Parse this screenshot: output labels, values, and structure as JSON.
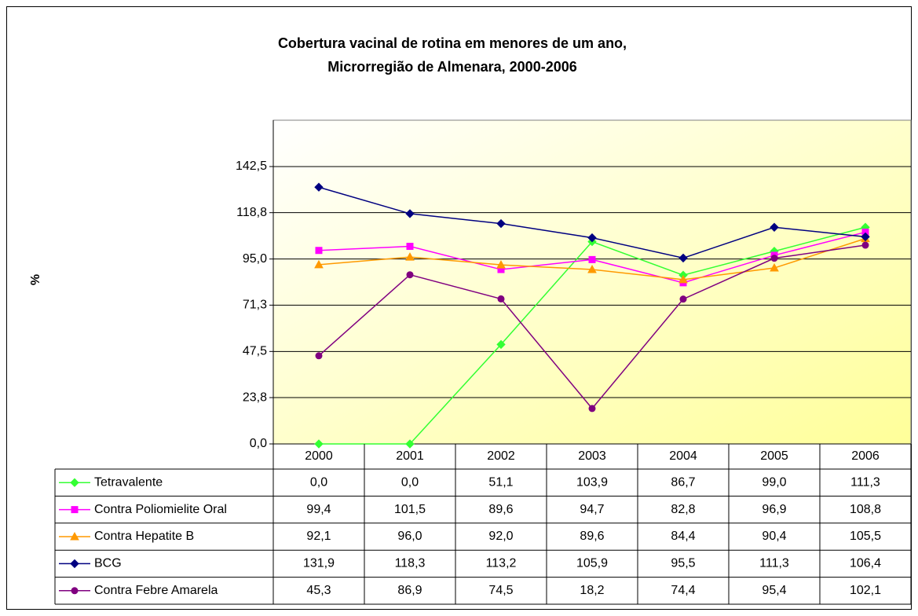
{
  "chart_data": {
    "type": "line",
    "title": [
      "Cobertura vacinal de rotina em menores de um ano,",
      "Microrregião de Almenara, 2000-2006"
    ],
    "y_label": "%",
    "categories": [
      "2000",
      "2001",
      "2002",
      "2003",
      "2004",
      "2005",
      "2006"
    ],
    "ylim": [
      0,
      166.3
    ],
    "yticks": [
      {
        "value": 0,
        "label": "0,0"
      },
      {
        "value": 23.8,
        "label": "23,8"
      },
      {
        "value": 47.5,
        "label": "47,5"
      },
      {
        "value": 71.3,
        "label": "71,3"
      },
      {
        "value": 95,
        "label": "95,0"
      },
      {
        "value": 118.8,
        "label": "118,8"
      },
      {
        "value": 142.5,
        "label": "142,5"
      }
    ],
    "grid": true,
    "series": [
      {
        "name": "Tetravalente",
        "color": "#33ff33",
        "marker": "diamond",
        "values": [
          0,
          0,
          51.1,
          103.9,
          86.7,
          99,
          111.3
        ],
        "value_labels": [
          "0,0",
          "0,0",
          "51,1",
          "103,9",
          "86,7",
          "99,0",
          "111,3"
        ]
      },
      {
        "name": "Contra Poliomielite Oral",
        "color": "#ff00ff",
        "marker": "square",
        "values": [
          99.4,
          101.5,
          89.6,
          94.7,
          82.8,
          96.9,
          108.8
        ],
        "value_labels": [
          "99,4",
          "101,5",
          "89,6",
          "94,7",
          "82,8",
          "96,9",
          "108,8"
        ]
      },
      {
        "name": "Contra Hepatite B",
        "color": "#ff9900",
        "marker": "triangle",
        "values": [
          92.1,
          96,
          92,
          89.6,
          84.4,
          90.4,
          105.5
        ],
        "value_labels": [
          "92,1",
          "96,0",
          "92,0",
          "89,6",
          "84,4",
          "90,4",
          "105,5"
        ]
      },
      {
        "name": "BCG",
        "color": "#000080",
        "marker": "diamond",
        "values": [
          131.9,
          118.3,
          113.2,
          105.9,
          95.5,
          111.3,
          106.4
        ],
        "value_labels": [
          "131,9",
          "118,3",
          "113,2",
          "105,9",
          "95,5",
          "111,3",
          "106,4"
        ]
      },
      {
        "name": "Contra Febre Amarela",
        "color": "#800080",
        "marker": "circle",
        "values": [
          45.3,
          86.9,
          74.5,
          18.2,
          74.4,
          95.4,
          102.1
        ],
        "value_labels": [
          "45,3",
          "86,9",
          "74,5",
          "18,2",
          "74,4",
          "95,4",
          "102,1"
        ]
      }
    ]
  }
}
